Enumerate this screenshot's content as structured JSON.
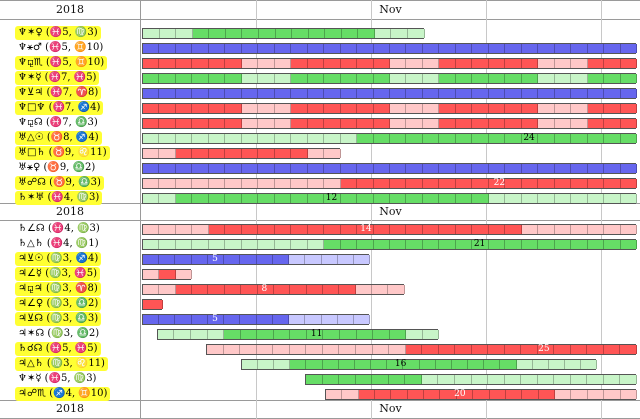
{
  "header": [
    {
      "year": "2018",
      "month": "Nov"
    },
    {
      "year": "2018",
      "month": "Nov"
    },
    {
      "year": "2018",
      "month": "Nov"
    }
  ],
  "colors": {
    "green": "#66dd66",
    "green_light": "#c8f5c8",
    "red": "#ff5555",
    "red_light": "#ffc8c8",
    "blue": "#6666ee",
    "blue_light": "#c8c8ff",
    "highlight": "#ffff33"
  },
  "rows": [
    {
      "glyphs": "♆✶♀",
      "pos": "(♓5, ♍3)",
      "highlight": true,
      "color": "green",
      "start": 0,
      "end": 0.57,
      "peak": null
    },
    {
      "glyphs": "♆⚹♂",
      "pos": "(♓5, ♊10)",
      "highlight": false,
      "color": "blue",
      "start": 0,
      "end": 1.0,
      "peak": null
    },
    {
      "glyphs": "♆⚼♏",
      "pos": "(♓5, ♊10)",
      "highlight": true,
      "color": "red",
      "start": 0,
      "end": 1.0,
      "peak": null
    },
    {
      "glyphs": "♆✶☿",
      "pos": "(♓7, ♓5)",
      "highlight": true,
      "color": "green",
      "start": 0,
      "end": 1.0,
      "peak": null
    },
    {
      "glyphs": "♆⊻♃",
      "pos": "(♓7, ♈8)",
      "highlight": true,
      "color": "blue",
      "start": 0,
      "end": 1.0,
      "peak": null
    },
    {
      "glyphs": "♆□♆",
      "pos": "(♓7, ♐4)",
      "highlight": true,
      "color": "red",
      "start": 0,
      "end": 1.0,
      "peak": null
    },
    {
      "glyphs": "♆⚼☊",
      "pos": "(♓7, ♎3)",
      "highlight": false,
      "color": "red",
      "start": 0,
      "end": 1.0,
      "peak": null
    },
    {
      "glyphs": "♅△☉",
      "pos": "(♉8, ♐4)",
      "highlight": true,
      "color": "green",
      "start": 0,
      "end": 1.0,
      "peak": "24",
      "peakAt": 0.78
    },
    {
      "glyphs": "♅□♄",
      "pos": "(♉9, ♌11)",
      "highlight": true,
      "color": "red",
      "start": 0,
      "end": 0.4,
      "peak": null
    },
    {
      "glyphs": "♅⚹♀",
      "pos": "(♉9, ♎2)",
      "highlight": false,
      "color": "blue",
      "start": 0,
      "end": 1.0,
      "peak": null
    },
    {
      "glyphs": "♅☍☊",
      "pos": "(♉9, ♎3)",
      "highlight": true,
      "color": "red",
      "start": 0,
      "end": 1.0,
      "peak": "22",
      "peakAt": 0.72
    },
    {
      "glyphs": "♄✶♅",
      "pos": "(♓4, ♍3)",
      "highlight": true,
      "color": "green",
      "start": 0,
      "end": 1.0,
      "peak": "12",
      "peakAt": 0.38
    },
    {
      "glyphs": "♄∠☊",
      "pos": "(♓4, ♍3)",
      "highlight": false,
      "color": "red",
      "start": 0,
      "end": 1.0,
      "peak": "14",
      "peakAt": 0.45
    },
    {
      "glyphs": "♄△♄",
      "pos": "(♓4, ♍1)",
      "highlight": false,
      "color": "green",
      "start": 0,
      "end": 1.0,
      "peak": "21",
      "peakAt": 0.68
    },
    {
      "glyphs": "♃⊻☉",
      "pos": "(♍3, ♐4)",
      "highlight": true,
      "color": "blue",
      "start": 0,
      "end": 0.46,
      "peak": "5",
      "peakAt": 0.15
    },
    {
      "glyphs": "♃∠☿",
      "pos": "(♍3, ♓5)",
      "highlight": true,
      "color": "red",
      "start": 0,
      "end": 0.1,
      "peak": null
    },
    {
      "glyphs": "♃⚼♃",
      "pos": "(♍3, ♈8)",
      "highlight": true,
      "color": "red",
      "start": 0,
      "end": 0.53,
      "peak": "8",
      "peakAt": 0.25
    },
    {
      "glyphs": "♃∠♀",
      "pos": "(♍3, ♎2)",
      "highlight": true,
      "color": "red",
      "start": 0,
      "end": 0.04,
      "peak": null
    },
    {
      "glyphs": "♃⊻☊",
      "pos": "(♍3, ♎3)",
      "highlight": true,
      "color": "blue",
      "start": 0,
      "end": 0.46,
      "peak": "5",
      "peakAt": 0.15
    },
    {
      "glyphs": "♃✶☊",
      "pos": "(♍3, ♎2)",
      "highlight": false,
      "color": "green",
      "start": 0.03,
      "end": 0.6,
      "peak": "11",
      "peakAt": 0.35
    },
    {
      "glyphs": "♄☌☊",
      "pos": "(♓5, ♓5)",
      "highlight": true,
      "color": "red",
      "start": 0.13,
      "end": 1.0,
      "peak": "25",
      "peakAt": 0.81
    },
    {
      "glyphs": "♃△♄",
      "pos": "(♍3, ♌11)",
      "highlight": true,
      "color": "green",
      "start": 0.2,
      "end": 0.92,
      "peak": "16",
      "peakAt": 0.52
    },
    {
      "glyphs": "♆✶☿",
      "pos": "(♓5, ♍3)",
      "highlight": false,
      "color": "green",
      "start": 0.33,
      "end": 1.0,
      "peak": null
    },
    {
      "glyphs": "♃☍♏",
      "pos": "(♐4, ♊10)",
      "highlight": true,
      "color": "red",
      "start": 0.37,
      "end": 1.0,
      "peak": "20",
      "peakAt": 0.64
    }
  ]
}
